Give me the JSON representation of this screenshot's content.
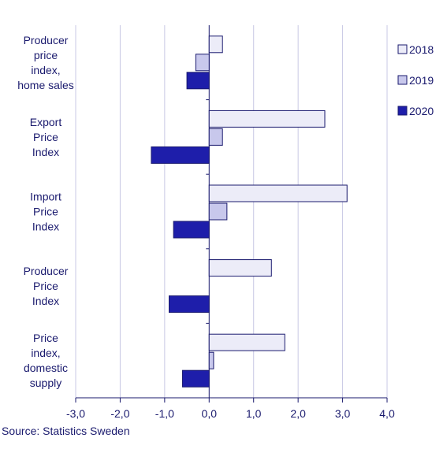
{
  "chart_data": {
    "type": "bar",
    "orientation": "horizontal",
    "categories": [
      [
        "Producer",
        "price",
        "index,",
        "home sales"
      ],
      [
        "Export",
        "Price",
        "Index"
      ],
      [
        "Import",
        "Price",
        "Index"
      ],
      [
        "Producer",
        "Price",
        "Index"
      ],
      [
        "Price",
        "index,",
        "domestic",
        "supply"
      ]
    ],
    "series": [
      {
        "name": "2018",
        "values": [
          0.3,
          2.6,
          3.1,
          1.4,
          1.7
        ],
        "color": "#ececf8"
      },
      {
        "name": "2019",
        "values": [
          -0.3,
          0.3,
          0.4,
          0.0,
          0.1
        ],
        "color": "#c8c8ec"
      },
      {
        "name": "2020",
        "values": [
          -0.5,
          -1.3,
          -0.8,
          -0.9,
          -0.6
        ],
        "color": "#1e1eaa"
      }
    ],
    "xlim": [
      -3.0,
      4.0
    ],
    "xticks": [
      "-3,0",
      "-2,0",
      "-1,0",
      "0,0",
      "1,0",
      "2,0",
      "3,0",
      "4,0"
    ],
    "grid": "vertical",
    "legend": "right"
  },
  "source": "Source: Statistics Sweden"
}
